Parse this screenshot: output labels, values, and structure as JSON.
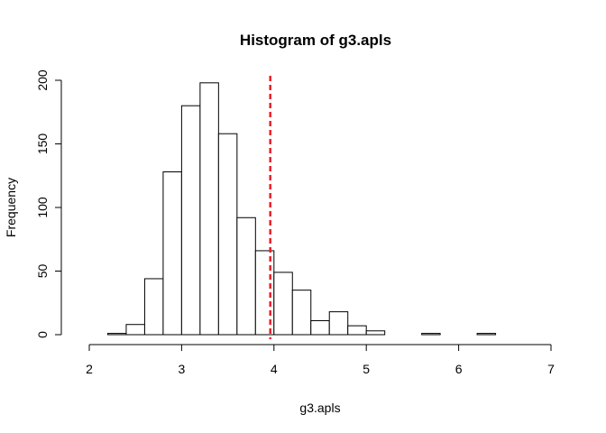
{
  "chart_data": {
    "type": "bar",
    "title": "Histogram of g3.apls",
    "xlabel": "g3.apls",
    "ylabel": "Frequency",
    "xlim": [
      2,
      7
    ],
    "ylim": [
      0,
      200
    ],
    "x_ticks": [
      "2",
      "3",
      "4",
      "5",
      "6",
      "7"
    ],
    "y_ticks": [
      "0",
      "50",
      "100",
      "150",
      "200"
    ],
    "bins": [
      {
        "x0": 2.2,
        "x1": 2.4,
        "count": 1
      },
      {
        "x0": 2.4,
        "x1": 2.6,
        "count": 8
      },
      {
        "x0": 2.6,
        "x1": 2.8,
        "count": 44
      },
      {
        "x0": 2.8,
        "x1": 3.0,
        "count": 128
      },
      {
        "x0": 3.0,
        "x1": 3.2,
        "count": 180
      },
      {
        "x0": 3.2,
        "x1": 3.4,
        "count": 198
      },
      {
        "x0": 3.4,
        "x1": 3.6,
        "count": 158
      },
      {
        "x0": 3.6,
        "x1": 3.8,
        "count": 92
      },
      {
        "x0": 3.8,
        "x1": 4.0,
        "count": 66
      },
      {
        "x0": 4.0,
        "x1": 4.2,
        "count": 49
      },
      {
        "x0": 4.2,
        "x1": 4.4,
        "count": 35
      },
      {
        "x0": 4.4,
        "x1": 4.6,
        "count": 11
      },
      {
        "x0": 4.6,
        "x1": 4.8,
        "count": 18
      },
      {
        "x0": 4.8,
        "x1": 5.0,
        "count": 7
      },
      {
        "x0": 5.0,
        "x1": 5.2,
        "count": 3
      },
      {
        "x0": 5.2,
        "x1": 5.4,
        "count": 0
      },
      {
        "x0": 5.4,
        "x1": 5.6,
        "count": 0
      },
      {
        "x0": 5.6,
        "x1": 5.8,
        "count": 1
      },
      {
        "x0": 5.8,
        "x1": 6.0,
        "count": 0
      },
      {
        "x0": 6.0,
        "x1": 6.2,
        "count": 0
      },
      {
        "x0": 6.2,
        "x1": 6.4,
        "count": 1
      }
    ],
    "reference_line": {
      "x": 3.96,
      "color": "#e8212b",
      "style": "dashed"
    },
    "bar_fill": "#ffffff",
    "bar_stroke": "#000000"
  }
}
